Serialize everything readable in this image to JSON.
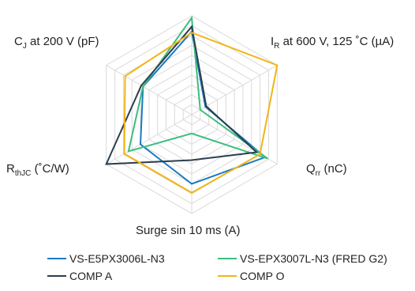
{
  "chart_data": {
    "type": "radar",
    "axes": [
      {
        "main": "C",
        "sub": "J",
        "rest": " at 200 V (pF)"
      },
      {
        "main": "",
        "sub": "",
        "rest": ""
      },
      {
        "main": "I",
        "sub": "R",
        "rest": " at 600 V, 125 ˚C (µA)"
      },
      {
        "main": "Q",
        "sub": "rr",
        "rest": " (nC)"
      },
      {
        "main": "Surge sin 10 ms (A)",
        "sub": "",
        "rest": ""
      },
      {
        "main": "R",
        "sub": "thJC",
        "rest": " (˚C/W)"
      }
    ],
    "rlim": [
      0,
      10
    ],
    "grid_rings": 10,
    "series": [
      {
        "name": "VS-E5PX3006L-N3",
        "color": "#1a7ac4",
        "values": [
          5.7,
          8.4,
          1.6,
          8.6,
          7.0,
          6.0
        ]
      },
      {
        "name": "VS-EPX3007L-N3 (FRED G2)",
        "color": "#3dbd7d",
        "values": [
          5.7,
          9.8,
          1.0,
          8.9,
          1.9,
          7.4
        ]
      },
      {
        "name": "COMP A",
        "color": "#2b3e50",
        "values": [
          5.9,
          8.9,
          1.7,
          7.6,
          4.6,
          10.0
        ]
      },
      {
        "name": "COMP O",
        "color": "#f2b418",
        "values": [
          7.8,
          8.3,
          10.0,
          8.0,
          7.9,
          7.9
        ]
      }
    ],
    "legend_position": "bottom"
  }
}
